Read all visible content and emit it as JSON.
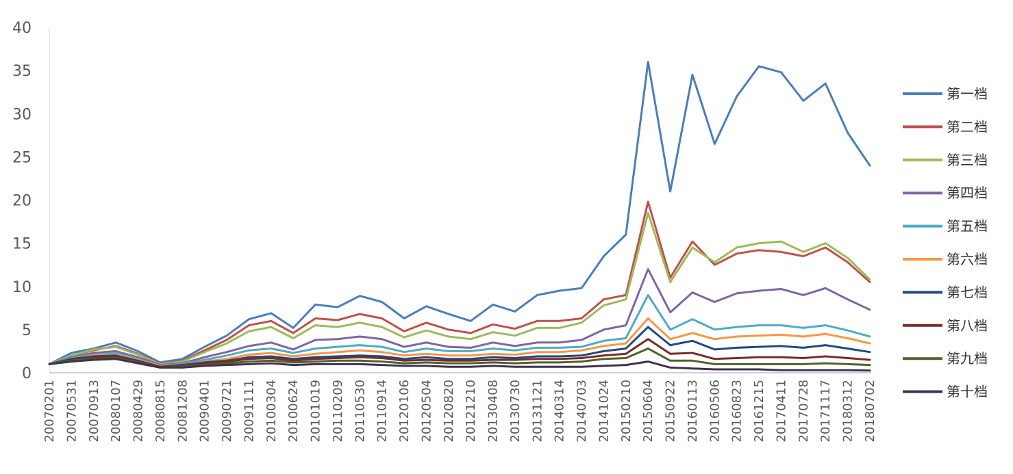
{
  "chart_data": {
    "type": "line",
    "title": "",
    "xlabel": "",
    "ylabel": "",
    "ylim": [
      0,
      40
    ],
    "yticks": [
      "0",
      "5",
      "10",
      "15",
      "20",
      "25",
      "30",
      "35",
      "40"
    ],
    "x_tick_labels": [
      "20070201",
      "20070531",
      "20070913",
      "20080107",
      "20080429",
      "20080815",
      "20081208",
      "20090401",
      "20090721",
      "20091111",
      "20100304",
      "20100624",
      "20101019",
      "20110209",
      "20110530",
      "20110914",
      "20120106",
      "20120504",
      "20120820",
      "20121210",
      "20130408",
      "20130730",
      "20131121",
      "20140314",
      "20140703",
      "20141024",
      "20150210",
      "20150604",
      "20150922",
      "20160113",
      "20160506",
      "20160823",
      "20161215",
      "20170411",
      "20170728",
      "20171117",
      "20180312",
      "20180702"
    ],
    "grid": false,
    "legend_position": "right",
    "series": [
      {
        "name": "第一档",
        "color": "#4a7ebb",
        "values": [
          1.0,
          2.3,
          2.8,
          3.5,
          2.5,
          1.2,
          1.6,
          3.0,
          4.3,
          6.2,
          6.9,
          5.2,
          7.9,
          7.6,
          8.9,
          8.2,
          6.3,
          7.7,
          6.8,
          6.0,
          7.9,
          7.1,
          9.0,
          9.5,
          9.8,
          13.5,
          16.0,
          36.0,
          21.0,
          34.5,
          26.5,
          32.0,
          35.5,
          34.8,
          31.5,
          33.5,
          27.8,
          24.0
        ]
      },
      {
        "name": "第二档",
        "color": "#c0504d",
        "values": [
          1.0,
          2.0,
          2.6,
          3.1,
          2.2,
          1.0,
          1.4,
          2.6,
          3.8,
          5.5,
          6.0,
          4.6,
          6.3,
          6.1,
          6.8,
          6.3,
          4.8,
          5.8,
          5.0,
          4.6,
          5.6,
          5.1,
          6.0,
          6.0,
          6.3,
          8.5,
          9.0,
          19.8,
          11.0,
          15.2,
          12.5,
          13.8,
          14.2,
          14.0,
          13.5,
          14.5,
          12.8,
          10.5
        ]
      },
      {
        "name": "第三档",
        "color": "#9bbb59",
        "values": [
          1.0,
          2.0,
          2.7,
          3.0,
          2.1,
          1.0,
          1.3,
          2.4,
          3.4,
          4.8,
          5.3,
          4.0,
          5.5,
          5.3,
          5.8,
          5.3,
          4.1,
          4.9,
          4.2,
          3.9,
          4.7,
          4.3,
          5.2,
          5.2,
          5.8,
          7.8,
          8.5,
          18.5,
          10.5,
          14.5,
          12.8,
          14.5,
          15.0,
          15.2,
          14.0,
          15.0,
          13.3,
          10.8
        ]
      },
      {
        "name": "第四档",
        "color": "#8064a2",
        "values": [
          1.0,
          1.8,
          2.3,
          2.5,
          1.8,
          0.9,
          1.1,
          1.8,
          2.4,
          3.1,
          3.5,
          2.7,
          3.8,
          3.9,
          4.2,
          3.9,
          3.0,
          3.5,
          3.0,
          2.9,
          3.5,
          3.1,
          3.5,
          3.5,
          3.8,
          5.0,
          5.5,
          12.0,
          7.0,
          9.3,
          8.2,
          9.2,
          9.5,
          9.7,
          9.0,
          9.8,
          8.5,
          7.3
        ]
      },
      {
        "name": "第五档",
        "color": "#4bacc6",
        "values": [
          1.0,
          1.7,
          2.1,
          2.3,
          1.6,
          0.8,
          1.0,
          1.5,
          2.0,
          2.6,
          2.8,
          2.3,
          2.8,
          3.0,
          3.2,
          3.0,
          2.4,
          2.8,
          2.5,
          2.5,
          2.8,
          2.6,
          2.9,
          2.9,
          3.0,
          3.7,
          4.0,
          9.0,
          5.0,
          6.2,
          5.0,
          5.3,
          5.5,
          5.5,
          5.2,
          5.5,
          4.9,
          4.2
        ]
      },
      {
        "name": "第六档",
        "color": "#f79646",
        "values": [
          1.0,
          1.6,
          2.0,
          2.1,
          1.5,
          0.8,
          0.9,
          1.3,
          1.6,
          2.1,
          2.3,
          1.9,
          2.2,
          2.4,
          2.6,
          2.4,
          2.0,
          2.2,
          2.0,
          2.0,
          2.2,
          2.1,
          2.4,
          2.4,
          2.6,
          3.1,
          3.4,
          6.3,
          3.9,
          4.6,
          3.9,
          4.2,
          4.3,
          4.4,
          4.2,
          4.5,
          4.0,
          3.4
        ]
      },
      {
        "name": "第七档",
        "color": "#1f497d",
        "values": [
          1.0,
          1.6,
          1.9,
          2.0,
          1.4,
          0.7,
          0.9,
          1.2,
          1.4,
          1.8,
          1.9,
          1.6,
          1.8,
          1.9,
          2.0,
          1.9,
          1.6,
          1.8,
          1.6,
          1.6,
          1.8,
          1.7,
          1.9,
          1.9,
          2.0,
          2.5,
          2.8,
          5.3,
          3.2,
          3.7,
          2.7,
          2.9,
          3.0,
          3.1,
          2.9,
          3.2,
          2.8,
          2.4
        ]
      },
      {
        "name": "第八档",
        "color": "#772c2a",
        "values": [
          1.0,
          1.5,
          1.8,
          1.9,
          1.3,
          0.7,
          0.8,
          1.1,
          1.3,
          1.6,
          1.7,
          1.4,
          1.6,
          1.7,
          1.8,
          1.7,
          1.4,
          1.5,
          1.4,
          1.4,
          1.5,
          1.5,
          1.6,
          1.6,
          1.7,
          2.0,
          2.2,
          3.9,
          2.2,
          2.3,
          1.6,
          1.7,
          1.8,
          1.8,
          1.7,
          1.9,
          1.7,
          1.5
        ]
      },
      {
        "name": "第九档",
        "color": "#4f6228",
        "values": [
          1.0,
          1.4,
          1.6,
          1.7,
          1.2,
          0.6,
          0.7,
          0.9,
          1.1,
          1.3,
          1.4,
          1.2,
          1.3,
          1.4,
          1.4,
          1.3,
          1.1,
          1.2,
          1.1,
          1.1,
          1.2,
          1.1,
          1.2,
          1.2,
          1.3,
          1.6,
          1.7,
          2.8,
          1.4,
          1.4,
          1.0,
          1.0,
          1.0,
          1.0,
          1.0,
          1.1,
          1.0,
          0.9
        ]
      },
      {
        "name": "第十档",
        "color": "#3f3151",
        "values": [
          1.0,
          1.3,
          1.5,
          1.6,
          1.1,
          0.6,
          0.6,
          0.8,
          0.9,
          1.0,
          1.1,
          0.9,
          1.0,
          1.0,
          1.0,
          0.9,
          0.8,
          0.8,
          0.7,
          0.7,
          0.8,
          0.7,
          0.7,
          0.7,
          0.7,
          0.8,
          0.9,
          1.3,
          0.6,
          0.5,
          0.4,
          0.4,
          0.4,
          0.3,
          0.3,
          0.3,
          0.3,
          0.25
        ]
      }
    ]
  }
}
